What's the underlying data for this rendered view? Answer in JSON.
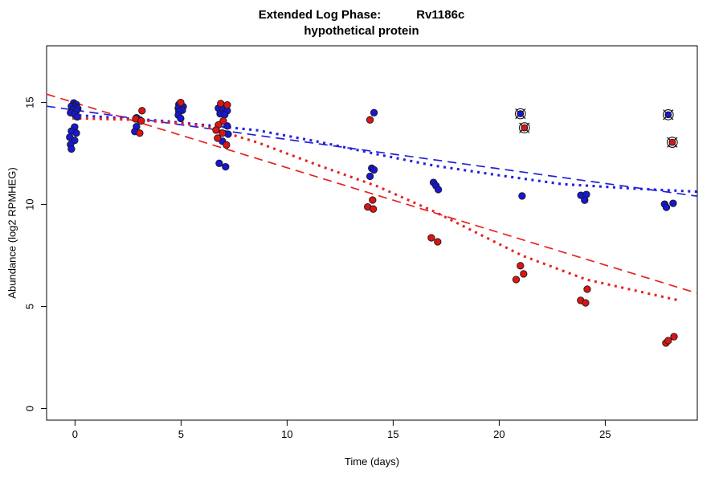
{
  "title": {
    "left": "Extended Log Phase:",
    "right": "Rv1186c",
    "subtitle": "hypothetical protein"
  },
  "axes": {
    "xlabel": "Time  (days)",
    "ylabel": "Abundance  (log2 RPMHEG)"
  },
  "chart_data": {
    "type": "scatter",
    "title": "Extended Log Phase: Rv1186c - hypothetical protein",
    "xlabel": "Time (days)",
    "ylabel": "Abundance (log2 RPMHEG)",
    "xlim": [
      -1.34,
      29.34
    ],
    "ylim": [
      -0.57,
      17.78
    ],
    "xticks": [
      0,
      5,
      10,
      15,
      20,
      25
    ],
    "yticks": [
      0,
      5,
      10,
      15
    ],
    "grid": false,
    "legend": "none",
    "colors": {
      "point_blue": "#1717d4",
      "point_red": "#dd1414",
      "point_edge": "#1a1a1a",
      "line_blue": "#2121dd",
      "line_red": "#e82222",
      "axis": "#000000"
    },
    "series": [
      {
        "name": "blue",
        "color": "#1717d4",
        "points": [
          [
            -0.06,
            14.98
          ],
          [
            0.06,
            14.9
          ],
          [
            -0.17,
            14.82
          ],
          [
            0.02,
            14.78
          ],
          [
            0.13,
            14.7
          ],
          [
            -0.09,
            14.66
          ],
          [
            0.06,
            14.58
          ],
          [
            -0.21,
            14.5
          ],
          [
            -0.02,
            14.43
          ],
          [
            0.1,
            14.3
          ],
          [
            -0.02,
            13.8
          ],
          [
            -0.17,
            13.6
          ],
          [
            0.06,
            13.5
          ],
          [
            -0.25,
            13.3
          ],
          [
            -0.02,
            13.14
          ],
          [
            -0.21,
            12.94
          ],
          [
            -0.17,
            12.72
          ],
          [
            2.9,
            14.25
          ],
          [
            3.05,
            14.15
          ],
          [
            2.9,
            13.82
          ],
          [
            2.82,
            13.58
          ],
          [
            4.9,
            14.9
          ],
          [
            5.1,
            14.8
          ],
          [
            4.87,
            14.72
          ],
          [
            5.06,
            14.62
          ],
          [
            4.9,
            14.55
          ],
          [
            4.87,
            14.38
          ],
          [
            4.98,
            14.22
          ],
          [
            6.76,
            14.72
          ],
          [
            6.99,
            14.67
          ],
          [
            7.18,
            14.6
          ],
          [
            6.84,
            14.45
          ],
          [
            7.06,
            14.4
          ],
          [
            7.18,
            13.85
          ],
          [
            7.22,
            13.45
          ],
          [
            6.95,
            13.1
          ],
          [
            6.8,
            12.02
          ],
          [
            7.1,
            11.85
          ],
          [
            14.1,
            14.5
          ],
          [
            13.99,
            11.78
          ],
          [
            14.1,
            11.7
          ],
          [
            13.91,
            11.38
          ],
          [
            16.9,
            11.08
          ],
          [
            17.02,
            10.92
          ],
          [
            17.13,
            10.73
          ],
          [
            21.08,
            10.42
          ],
          [
            23.85,
            10.45
          ],
          [
            24.11,
            10.49
          ],
          [
            24.03,
            10.21
          ],
          [
            27.8,
            10.02
          ],
          [
            27.88,
            9.86
          ],
          [
            28.2,
            10.06
          ]
        ]
      },
      {
        "name": "red",
        "color": "#dd1414",
        "points": [
          [
            3.16,
            14.6
          ],
          [
            2.86,
            14.2
          ],
          [
            3.12,
            14.1
          ],
          [
            3.05,
            13.5
          ],
          [
            4.98,
            15.0
          ],
          [
            6.87,
            14.95
          ],
          [
            7.18,
            14.88
          ],
          [
            6.99,
            14.1
          ],
          [
            6.76,
            13.9
          ],
          [
            6.65,
            13.65
          ],
          [
            6.95,
            13.5
          ],
          [
            6.72,
            13.25
          ],
          [
            7.14,
            12.92
          ],
          [
            13.91,
            14.15
          ],
          [
            14.03,
            10.22
          ],
          [
            13.8,
            9.88
          ],
          [
            14.06,
            9.78
          ],
          [
            16.8,
            8.37
          ],
          [
            17.1,
            8.17
          ],
          [
            21.0,
            7.0
          ],
          [
            21.15,
            6.6
          ],
          [
            20.8,
            6.32
          ],
          [
            24.15,
            5.85
          ],
          [
            23.84,
            5.3
          ],
          [
            24.07,
            5.18
          ],
          [
            27.86,
            3.21
          ],
          [
            27.97,
            3.33
          ],
          [
            28.24,
            3.52
          ]
        ]
      }
    ],
    "circled_points": [
      {
        "series": "blue",
        "x": 21.0,
        "y": 14.45
      },
      {
        "series": "red",
        "x": 21.19,
        "y": 13.76
      },
      {
        "series": "blue",
        "x": 27.97,
        "y": 14.4
      },
      {
        "series": "red",
        "x": 28.16,
        "y": 13.05
      }
    ],
    "trend_lines": [
      {
        "name": "blue-dashed",
        "color": "#2121dd",
        "dash": "longdash",
        "width": 1.7,
        "points": [
          [
            -1.34,
            14.82
          ],
          [
            29.34,
            10.41
          ]
        ]
      },
      {
        "name": "red-dashed",
        "color": "#e82222",
        "dash": "longdash",
        "width": 1.7,
        "points": [
          [
            -1.34,
            15.41
          ],
          [
            29.34,
            5.65
          ]
        ]
      },
      {
        "name": "blue-dotted",
        "color": "#2121dd",
        "dash": "dotted",
        "width": 3.1,
        "points": [
          [
            -0.13,
            14.39
          ],
          [
            4.03,
            14.11
          ],
          [
            8.58,
            13.64
          ],
          [
            11.61,
            13.05
          ],
          [
            14.26,
            12.46
          ],
          [
            16.91,
            11.91
          ],
          [
            19.94,
            11.44
          ],
          [
            22.97,
            11.0
          ],
          [
            26.38,
            10.78
          ],
          [
            29.34,
            10.63
          ]
        ]
      },
      {
        "name": "red-dotted",
        "color": "#e82222",
        "dash": "dotted",
        "width": 3.1,
        "points": [
          [
            -0.13,
            14.23
          ],
          [
            2.9,
            14.15
          ],
          [
            5.93,
            13.88
          ],
          [
            8.58,
            13.05
          ],
          [
            11.61,
            11.87
          ],
          [
            14.26,
            10.89
          ],
          [
            16.91,
            9.67
          ],
          [
            21.08,
            7.5
          ],
          [
            24.11,
            6.32
          ],
          [
            28.47,
            5.3
          ]
        ]
      }
    ]
  }
}
